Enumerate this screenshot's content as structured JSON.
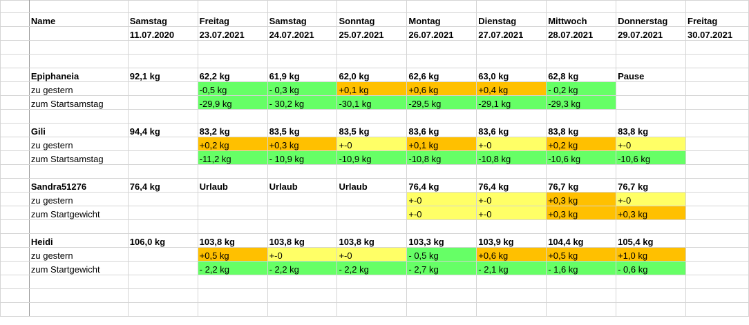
{
  "header": {
    "name_label": "Name",
    "days": [
      "Samstag",
      "Freitag",
      "Samstag",
      "Sonntag",
      "Montag",
      "Dienstag",
      "Mittwoch",
      "Donnerstag",
      "Freitag"
    ],
    "dates": [
      "11.07.2020",
      "23.07.2021",
      "24.07.2021",
      "25.07.2021",
      "26.07.2021",
      "27.07.2021",
      "28.07.2021",
      "29.07.2021",
      "30.07.2021"
    ]
  },
  "colors": {
    "green": "#66ff66",
    "orange": "#ffc000",
    "yellow": "#ffff66",
    "grid": "#d4d4d4"
  },
  "people": [
    {
      "name": "Epiphaneia",
      "weights": [
        "92,1 kg",
        "62,2 kg",
        "61,9 kg",
        "62,0 kg",
        "62,6 kg",
        "63,0 kg",
        "62,8 kg",
        "Pause",
        ""
      ],
      "diff_label": "zu gestern",
      "diff": [
        "",
        "-0,5 kg",
        "- 0,3 kg",
        "+0,1 kg",
        "+0,6 kg",
        "+0,4 kg",
        "- 0,2 kg",
        "",
        ""
      ],
      "diff_colors": [
        "",
        "green",
        "green",
        "orange",
        "orange",
        "orange",
        "green",
        "",
        ""
      ],
      "start_label": "zum Startsamstag",
      "start": [
        "",
        "-29,9 kg",
        "- 30,2 kg",
        "-30,1 kg",
        "-29,5 kg",
        "-29,1 kg",
        "-29,3 kg",
        "",
        ""
      ],
      "start_colors": [
        "",
        "green",
        "green",
        "green",
        "green",
        "green",
        "green",
        "",
        ""
      ]
    },
    {
      "name": "Gili",
      "weights": [
        "94,4 kg",
        "83,2 kg",
        "83,5 kg",
        "83,5 kg",
        "83,6 kg",
        "83,6 kg",
        "83,8 kg",
        "83,8 kg",
        ""
      ],
      "diff_label": "zu gestern",
      "diff": [
        "",
        "+0,2 kg",
        "+0,3 kg",
        "+-0",
        "+0,1 kg",
        "+-0",
        "+0,2 kg",
        "+-0",
        ""
      ],
      "diff_colors": [
        "",
        "orange",
        "orange",
        "yellow",
        "orange",
        "yellow",
        "orange",
        "yellow",
        ""
      ],
      "start_label": "zum Startsamstag",
      "start": [
        "",
        "-11,2 kg",
        "- 10,9 kg",
        "-10,9 kg",
        "-10,8 kg",
        "-10,8 kg",
        "-10,6 kg",
        "-10,6 kg",
        ""
      ],
      "start_colors": [
        "",
        "green",
        "green",
        "green",
        "green",
        "green",
        "green",
        "green",
        ""
      ]
    },
    {
      "name": "Sandra51276",
      "weights": [
        "76,4 kg",
        "Urlaub",
        "Urlaub",
        "Urlaub",
        "76,4 kg",
        "76,4 kg",
        "76,7 kg",
        "76,7 kg",
        ""
      ],
      "diff_label": "zu gestern",
      "diff": [
        "",
        "",
        "",
        "",
        "+-0",
        "+-0",
        "+0,3 kg",
        "+-0",
        ""
      ],
      "diff_colors": [
        "",
        "",
        "",
        "",
        "yellow",
        "yellow",
        "orange",
        "yellow",
        ""
      ],
      "start_label": "zum Startgewicht",
      "start": [
        "",
        "",
        "",
        "",
        "+-0",
        "+-0",
        "+0,3 kg",
        "+0,3 kg",
        ""
      ],
      "start_colors": [
        "",
        "",
        "",
        "",
        "yellow",
        "yellow",
        "orange",
        "orange",
        ""
      ]
    },
    {
      "name": "Heidi",
      "weights": [
        "106,0 kg",
        "103,8 kg",
        "103,8 kg",
        "103,8 kg",
        "103,3 kg",
        "103,9 kg",
        "104,4 kg",
        "105,4 kg",
        ""
      ],
      "diff_label": "zu gestern",
      "diff": [
        "",
        "+0,5 kg",
        "+-0",
        "+-0",
        "- 0,5 kg",
        "+0,6 kg",
        "+0,5 kg",
        "+1,0 kg",
        ""
      ],
      "diff_colors": [
        "",
        "orange",
        "yellow",
        "yellow",
        "green",
        "orange",
        "orange",
        "orange",
        ""
      ],
      "start_label": "zum Startgewicht",
      "start": [
        "",
        "-  2,2 kg",
        "-  2,2 kg",
        "- 2,2 kg",
        "- 2,7 kg",
        "- 2,1 kg",
        "- 1,6 kg",
        "- 0,6 kg",
        ""
      ],
      "start_colors": [
        "",
        "green",
        "green",
        "green",
        "green",
        "green",
        "green",
        "green",
        ""
      ]
    }
  ]
}
